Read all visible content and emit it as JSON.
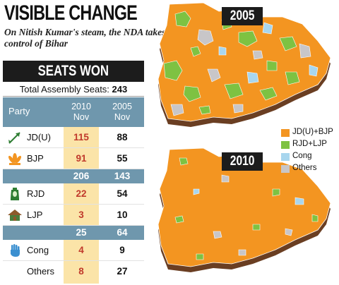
{
  "headline": "VISIBLE CHANGE",
  "subheadline": "On Nitish Kumar's steam, the NDA takes control of Bihar",
  "table": {
    "title": "SEATS WON",
    "total_label": "Total Assembly Seats:",
    "total_value": "243",
    "col_party": "Party",
    "col_2010_year": "2010",
    "col_2010_sub": "Nov",
    "col_2005_year": "2005",
    "col_2005_sub": "Nov",
    "rows": [
      {
        "party": "JD(U)",
        "symbol": "arrow-icon",
        "v2010": "115",
        "v2005": "88"
      },
      {
        "party": "BJP",
        "symbol": "lotus-icon",
        "v2010": "91",
        "v2005": "55"
      },
      {
        "party": "RJD",
        "symbol": "lantern-icon",
        "v2010": "22",
        "v2005": "54"
      },
      {
        "party": "LJP",
        "symbol": "bungalow-icon",
        "v2010": "3",
        "v2005": "10"
      },
      {
        "party": "Cong",
        "symbol": "hand-icon",
        "v2010": "4",
        "v2005": "9"
      },
      {
        "party": "Others",
        "symbol": "",
        "v2010": "8",
        "v2005": "27"
      }
    ],
    "subtotals": [
      {
        "v2010": "206",
        "v2005": "143"
      },
      {
        "v2010": "25",
        "v2005": "64"
      }
    ]
  },
  "maps": [
    {
      "year": "2005"
    },
    {
      "year": "2010"
    }
  ],
  "legend": [
    {
      "label": "JD(U)+BJP",
      "color": "#f39521"
    },
    {
      "label": "RJD+LJP",
      "color": "#7ec242"
    },
    {
      "label": "Cong",
      "color": "#a8d6ee"
    },
    {
      "label": "Others",
      "color": "#c8c6c8"
    }
  ],
  "colors": {
    "map_side": "#6a3e22",
    "table_header": "#6f97ad",
    "highlight_2010": "#fbe4a8",
    "value_2010": "#c0392b"
  }
}
